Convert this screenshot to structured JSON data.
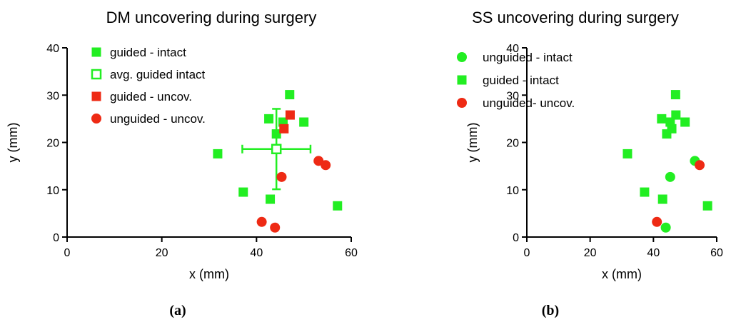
{
  "colors": {
    "green": "#22ee22",
    "red": "#ee2a14"
  },
  "chart_data": [
    {
      "type": "scatter",
      "title": "DM uncovering during surgery",
      "xlabel": "x (mm)",
      "ylabel": "y (mm)",
      "xlim": [
        0,
        60
      ],
      "ylim": [
        0,
        40
      ],
      "xticks": [
        0,
        20,
        40,
        60
      ],
      "yticks": [
        0,
        10,
        20,
        30,
        40
      ],
      "caption": "(a)",
      "legend_position": "top-left",
      "series": [
        {
          "name": "guided - intact",
          "marker": "square",
          "color": "#22ee22",
          "points": [
            [
              31.8,
              17.6
            ],
            [
              37.2,
              9.5
            ],
            [
              42.6,
              25.0
            ],
            [
              42.9,
              8.0
            ],
            [
              44.2,
              21.8
            ],
            [
              45.6,
              24.3
            ],
            [
              47.0,
              30.1
            ],
            [
              50.0,
              24.3
            ],
            [
              57.1,
              6.6
            ]
          ]
        },
        {
          "name": "avg. guided intact",
          "marker": "open-square",
          "color": "#22ee22",
          "points": [
            [
              44.2,
              18.6
            ]
          ],
          "error": {
            "x": 7.2,
            "y": 8.5
          }
        },
        {
          "name": "guided - uncov.",
          "marker": "square",
          "color": "#ee2a14",
          "points": [
            [
              45.8,
              22.9
            ],
            [
              47.1,
              25.8
            ]
          ]
        },
        {
          "name": "unguided - uncov.",
          "marker": "circle",
          "color": "#ee2a14",
          "points": [
            [
              41.1,
              3.2
            ],
            [
              43.9,
              2.0
            ],
            [
              45.3,
              12.7
            ],
            [
              53.1,
              16.1
            ],
            [
              54.6,
              15.2
            ]
          ]
        }
      ]
    },
    {
      "type": "scatter",
      "title": "SS uncovering during surgery",
      "xlabel": "x (mm)",
      "ylabel": "y (mm)",
      "xlim": [
        0,
        60
      ],
      "ylim": [
        0,
        40
      ],
      "xticks": [
        0,
        20,
        40,
        60
      ],
      "yticks": [
        0,
        10,
        20,
        30,
        40
      ],
      "caption": "(b)",
      "legend_position": "top-left",
      "series": [
        {
          "name": "unguided - intact",
          "marker": "circle",
          "color": "#22ee22",
          "points": [
            [
              43.9,
              2.0
            ],
            [
              45.3,
              12.7
            ],
            [
              53.1,
              16.1
            ]
          ]
        },
        {
          "name": "guided - intact",
          "marker": "square",
          "color": "#22ee22",
          "points": [
            [
              31.8,
              17.6
            ],
            [
              37.2,
              9.5
            ],
            [
              42.6,
              25.0
            ],
            [
              42.9,
              8.0
            ],
            [
              44.2,
              21.8
            ],
            [
              45.3,
              24.3
            ],
            [
              45.8,
              22.9
            ],
            [
              47.0,
              30.1
            ],
            [
              47.1,
              25.8
            ],
            [
              50.0,
              24.3
            ],
            [
              57.1,
              6.6
            ]
          ]
        },
        {
          "name": "unguided- uncov.",
          "marker": "circle",
          "color": "#ee2a14",
          "points": [
            [
              41.1,
              3.2
            ],
            [
              54.6,
              15.2
            ]
          ]
        }
      ]
    }
  ]
}
